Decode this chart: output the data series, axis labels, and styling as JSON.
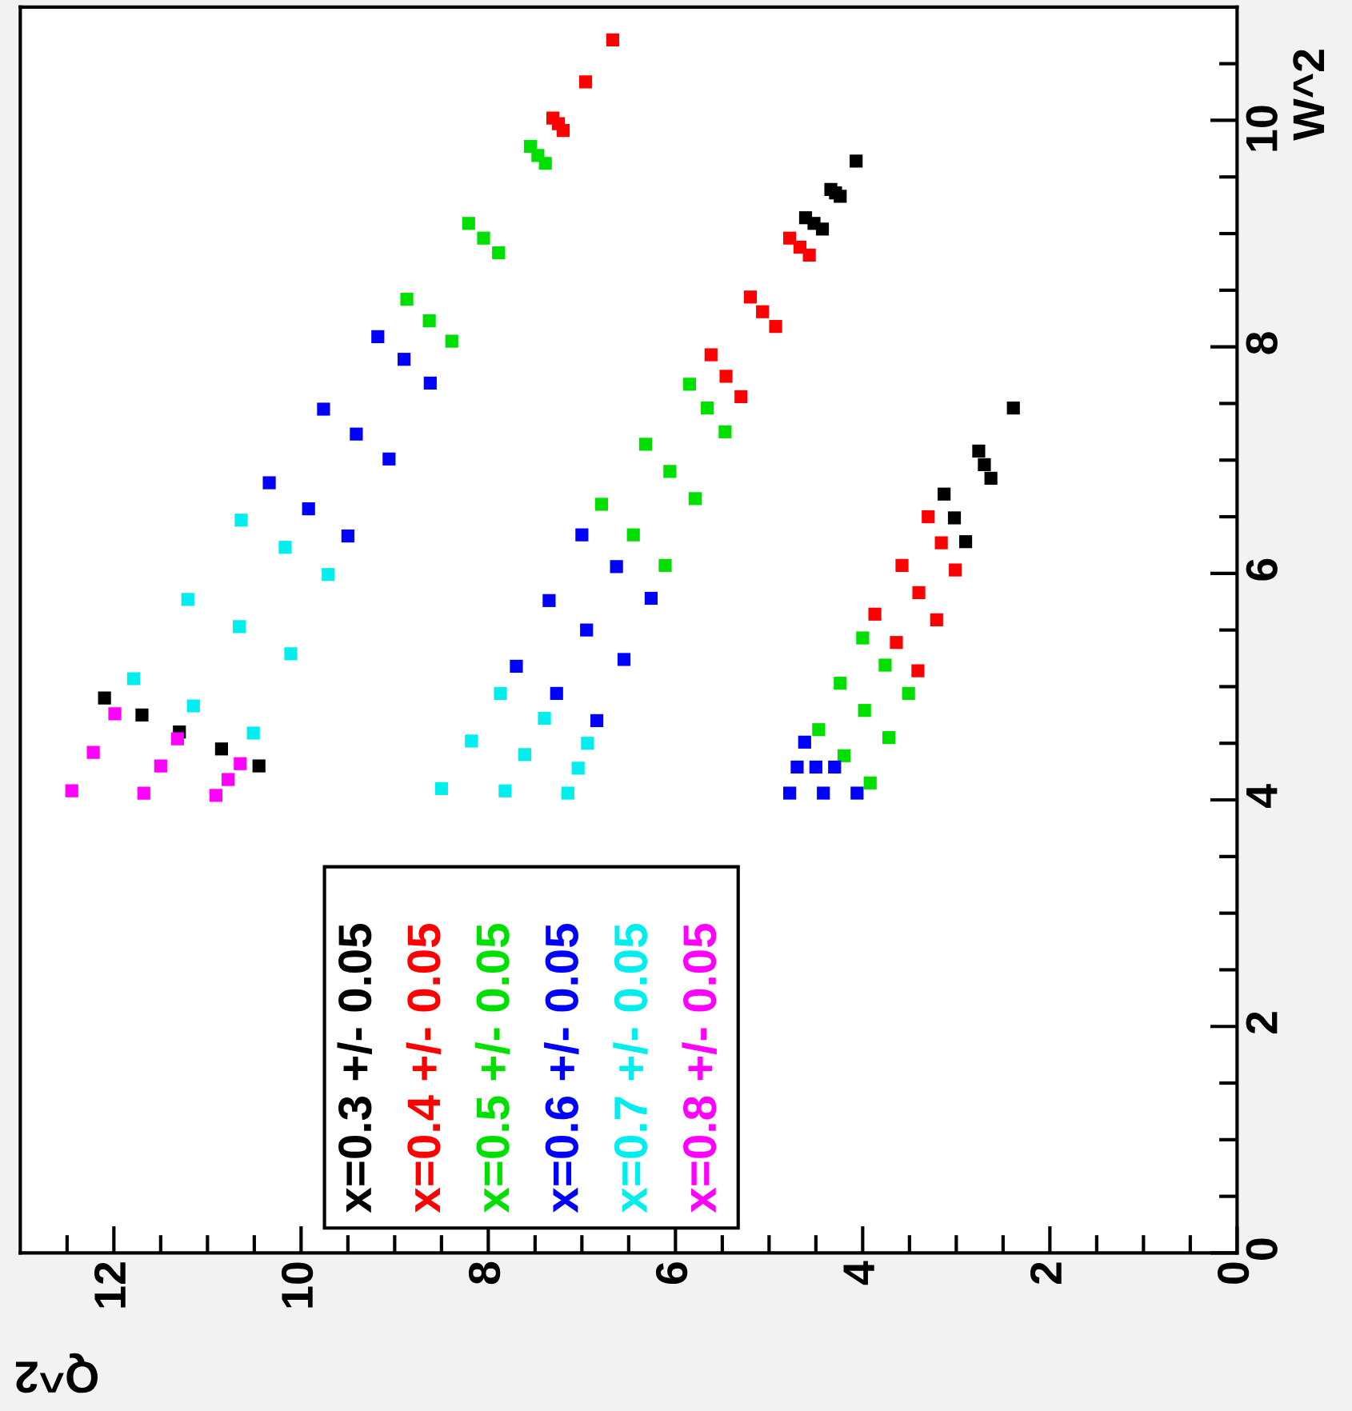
{
  "chart_data": {
    "type": "scatter",
    "xlabel": "Q^2",
    "ylabel": "W^2",
    "xlim": [
      13,
      0
    ],
    "ylim": [
      0,
      11
    ],
    "xticks": [
      0,
      {
        "value": 0.5,
        "label": null
      },
      {
        "value": 1,
        "label": null
      },
      {
        "value": 1.5,
        "label": null
      },
      2,
      {
        "value": 2.5,
        "label": null
      },
      {
        "value": 3,
        "label": null
      },
      {
        "value": 3.5,
        "label": null
      },
      4,
      {
        "value": 4.5,
        "label": null
      },
      {
        "value": 5,
        "label": null
      },
      {
        "value": 5.5,
        "label": null
      },
      6,
      {
        "value": 6.5,
        "label": null
      },
      {
        "value": 7,
        "label": null
      },
      {
        "value": 7.5,
        "label": null
      },
      8,
      {
        "value": 8.5,
        "label": null
      },
      {
        "value": 9,
        "label": null
      },
      {
        "value": 9.5,
        "label": null
      },
      10,
      {
        "value": 10.5,
        "label": null
      },
      {
        "value": 11,
        "label": null
      },
      {
        "value": 11.5,
        "label": null
      },
      12,
      {
        "value": 12.5,
        "label": null
      }
    ],
    "yticks": [
      0,
      {
        "value": 0.5,
        "label": null
      },
      {
        "value": 1,
        "label": null
      },
      {
        "value": 1.5,
        "label": null
      },
      2,
      {
        "value": 2.5,
        "label": null
      },
      {
        "value": 3,
        "label": null
      },
      {
        "value": 3.5,
        "label": null
      },
      4,
      {
        "value": 4.5,
        "label": null
      },
      {
        "value": 5,
        "label": null
      },
      {
        "value": 5.5,
        "label": null
      },
      6,
      {
        "value": 6.5,
        "label": null
      },
      {
        "value": 7,
        "label": null
      },
      {
        "value": 7.5,
        "label": null
      },
      8,
      {
        "value": 8.5,
        "label": null
      },
      {
        "value": 9,
        "label": null
      },
      {
        "value": 9.5,
        "label": null
      },
      10,
      {
        "value": 10.5,
        "label": null
      }
    ],
    "marker": "square",
    "grid": false,
    "legend": "bottom left",
    "series": [
      {
        "name": "x=0.3 +/- 0.05",
        "color": "#000000",
        "x": [
          12.1,
          11.7,
          11.3,
          10.85,
          10.45,
          4.61,
          4.52,
          4.43,
          4.34,
          4.29,
          4.24,
          4.07,
          3.13,
          3.02,
          2.9,
          2.76,
          2.7,
          2.63,
          2.39
        ],
        "values": [
          4.9,
          4.75,
          4.6,
          4.45,
          4.3,
          9.14,
          9.09,
          9.04,
          9.39,
          9.36,
          9.33,
          9.64,
          6.7,
          6.49,
          6.28,
          7.08,
          6.96,
          6.84,
          7.46
        ]
      },
      {
        "name": "x=0.4 +/- 0.05",
        "color": "#ff0000",
        "x": [
          7.31,
          7.25,
          7.2,
          6.96,
          6.67,
          5.62,
          5.46,
          5.3,
          5.2,
          5.07,
          4.93,
          4.78,
          4.67,
          4.57,
          3.87,
          3.64,
          3.41,
          3.58,
          3.4,
          3.21,
          3.3,
          3.16,
          3.01
        ],
        "values": [
          10.02,
          9.97,
          9.91,
          10.34,
          10.71,
          7.93,
          7.74,
          7.56,
          8.44,
          8.31,
          8.18,
          8.96,
          8.88,
          8.81,
          5.64,
          5.39,
          5.14,
          6.07,
          5.83,
          5.59,
          6.5,
          6.27,
          6.03
        ]
      },
      {
        "name": "x=0.5 +/- 0.05",
        "color": "#00e000",
        "x": [
          8.87,
          8.63,
          8.39,
          8.21,
          8.05,
          7.89,
          7.55,
          7.47,
          7.39,
          6.79,
          6.45,
          6.11,
          6.32,
          6.06,
          5.79,
          5.85,
          5.66,
          5.47,
          4.47,
          4.2,
          3.92,
          4.24,
          3.98,
          3.72,
          4.0,
          3.76,
          3.51
        ],
        "values": [
          8.42,
          8.23,
          8.05,
          9.09,
          8.96,
          8.83,
          9.77,
          9.69,
          9.62,
          6.61,
          6.34,
          6.07,
          7.14,
          6.9,
          6.66,
          7.67,
          7.46,
          7.25,
          4.62,
          4.39,
          4.15,
          5.03,
          4.79,
          4.55,
          5.43,
          5.19,
          4.94
        ]
      },
      {
        "name": "x=0.6 +/- 0.05",
        "color": "#0000ff",
        "x": [
          10.34,
          9.92,
          9.5,
          9.76,
          9.41,
          9.06,
          9.18,
          8.9,
          8.62,
          7.7,
          7.27,
          6.84,
          7.35,
          6.95,
          6.55,
          7.0,
          6.63,
          6.26,
          4.78,
          4.42,
          4.06,
          4.7,
          4.5,
          4.3,
          4.62
        ],
        "values": [
          6.8,
          6.57,
          6.33,
          7.45,
          7.23,
          7.01,
          8.09,
          7.89,
          7.68,
          5.18,
          4.94,
          4.7,
          5.76,
          5.5,
          5.24,
          6.34,
          6.06,
          5.78,
          4.06,
          4.06,
          4.06,
          4.29,
          4.29,
          4.29,
          4.51
        ]
      },
      {
        "name": "x=0.7 +/- 0.05",
        "color": "#00eeee",
        "x": [
          11.79,
          11.15,
          10.51,
          11.21,
          10.66,
          10.11,
          10.64,
          10.17,
          9.71,
          8.5,
          7.82,
          7.15,
          8.18,
          7.61,
          7.04,
          7.87,
          7.4,
          6.94
        ],
        "values": [
          5.07,
          4.83,
          4.59,
          5.77,
          5.53,
          5.29,
          6.47,
          6.23,
          5.99,
          4.1,
          4.08,
          4.06,
          4.52,
          4.4,
          4.28,
          4.94,
          4.72,
          4.5
        ]
      },
      {
        "name": "x=0.8 +/- 0.05",
        "color": "#ff00ff",
        "x": [
          12.45,
          11.68,
          10.91,
          12.22,
          11.5,
          10.78,
          11.99,
          11.32,
          10.65
        ],
        "values": [
          4.08,
          4.06,
          4.04,
          4.42,
          4.3,
          4.18,
          4.76,
          4.54,
          4.32
        ]
      }
    ]
  }
}
